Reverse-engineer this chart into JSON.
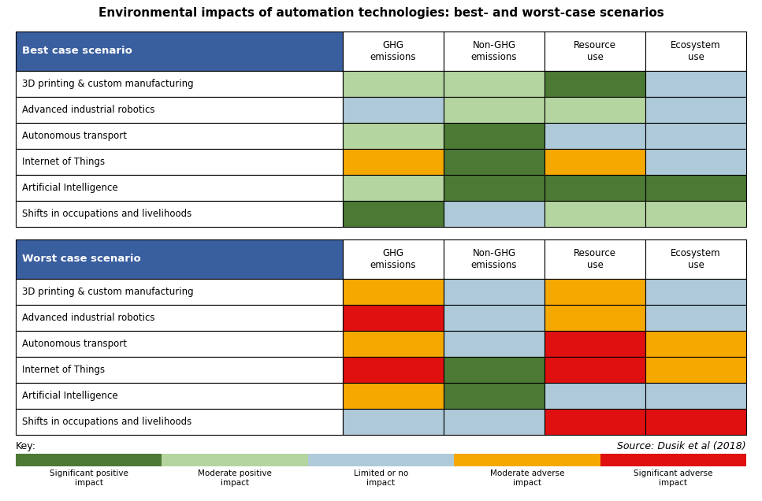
{
  "title": "Environmental impacts of automation technologies: best- and worst-case scenarios",
  "header_bg": "#3A5F9F",
  "header_text_color": "#FFFFFF",
  "col_headers": [
    "GHG\nemissions",
    "Non-GHG\nemissions",
    "Resource\nuse",
    "Ecosystem\nuse"
  ],
  "row_labels": [
    "3D printing & custom manufacturing",
    "Advanced industrial robotics",
    "Autonomous transport",
    "Internet of Things",
    "Artificial Intelligence",
    "Shifts in occupations and livelihoods"
  ],
  "best_case_label": "Best case scenario",
  "worst_case_label": "Worst case scenario",
  "colors": {
    "sig_pos": "#4C7A34",
    "mod_pos": "#B5D5A0",
    "limited": "#AECAD8",
    "mod_adv": "#F5A800",
    "sig_adv": "#E01010",
    "white": "#FFFFFF"
  },
  "best_case_data": [
    [
      "mod_pos",
      "mod_pos",
      "sig_pos",
      "limited"
    ],
    [
      "limited",
      "mod_pos",
      "mod_pos",
      "limited"
    ],
    [
      "mod_pos",
      "sig_pos",
      "limited",
      "limited"
    ],
    [
      "mod_adv",
      "sig_pos",
      "mod_adv",
      "limited"
    ],
    [
      "mod_pos",
      "sig_pos",
      "sig_pos",
      "sig_pos"
    ],
    [
      "sig_pos",
      "limited",
      "mod_pos",
      "mod_pos"
    ]
  ],
  "worst_case_data": [
    [
      "mod_adv",
      "limited",
      "mod_adv",
      "limited"
    ],
    [
      "sig_adv",
      "limited",
      "mod_adv",
      "limited"
    ],
    [
      "mod_adv",
      "limited",
      "sig_adv",
      "mod_adv"
    ],
    [
      "sig_adv",
      "sig_pos",
      "sig_adv",
      "mod_adv"
    ],
    [
      "mod_adv",
      "sig_pos",
      "limited",
      "limited"
    ],
    [
      "limited",
      "limited",
      "sig_adv",
      "sig_adv"
    ]
  ],
  "legend_labels": [
    "Significant positive\nimpact",
    "Moderate positive\nimpact",
    "Limited or no\nimpact",
    "Moderate adverse\nimpact",
    "Significant adverse\nimpact"
  ],
  "legend_colors": [
    "#4C7A34",
    "#B5D5A0",
    "#AECAD8",
    "#F5A800",
    "#E01010"
  ],
  "source_text": "Source: Dusik et al (2018)",
  "key_text": "Key:",
  "background_color": "#FFFFFF",
  "border_color": "#000000"
}
